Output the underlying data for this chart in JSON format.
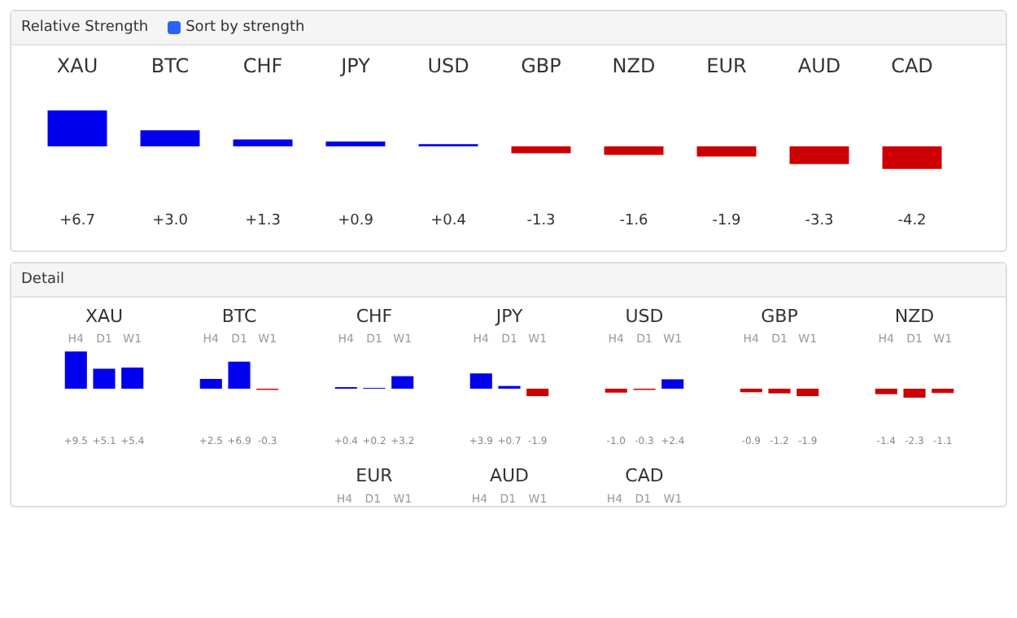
{
  "chart_data": [
    {
      "type": "bar",
      "title": "Relative Strength",
      "annotations": [
        "Sort by strength"
      ],
      "categories": [
        "XAU",
        "BTC",
        "CHF",
        "JPY",
        "USD",
        "GBP",
        "NZD",
        "EUR",
        "AUD",
        "CAD"
      ],
      "values": [
        6.7,
        3.0,
        1.3,
        0.9,
        0.4,
        -1.3,
        -1.6,
        -1.9,
        -3.3,
        -4.2
      ],
      "value_labels": [
        "+6.7",
        "+3.0",
        "+1.3",
        "+0.9",
        "+0.4",
        "-1.3",
        "-1.6",
        "-1.9",
        "-3.3",
        "-4.2"
      ],
      "colors": [
        "#0000ee",
        "#0000ee",
        "#0000ee",
        "#0000ee",
        "#0000ee",
        "#cc0000",
        "#cc0000",
        "#cc0000",
        "#cc0000",
        "#cc0000"
      ]
    },
    {
      "type": "other",
      "title": "Detail"
    },
    {
      "type": "bar",
      "title": "XAU",
      "categories": [
        "H4",
        "D1",
        "W1"
      ],
      "values": [
        9.5,
        5.1,
        5.4
      ],
      "value_labels": [
        "+9.5",
        "+5.1",
        "+5.4"
      ],
      "colors": [
        "#0000ee",
        "#0000ee",
        "#0000ee"
      ]
    },
    {
      "type": "bar",
      "title": "BTC",
      "categories": [
        "H4",
        "D1",
        "W1"
      ],
      "values": [
        2.5,
        6.9,
        -0.3
      ],
      "value_labels": [
        "+2.5",
        "+6.9",
        "-0.3"
      ],
      "colors": [
        "#0000ee",
        "#0000ee",
        "#cc0000"
      ]
    },
    {
      "type": "bar",
      "title": "CHF",
      "categories": [
        "H4",
        "D1",
        "W1"
      ],
      "values": [
        0.4,
        0.2,
        3.2
      ],
      "value_labels": [
        "+0.4",
        "+0.2",
        "+3.2"
      ],
      "colors": [
        "#0000ee",
        "#0000ee",
        "#0000ee"
      ]
    },
    {
      "type": "bar",
      "title": "JPY",
      "categories": [
        "H4",
        "D1",
        "W1"
      ],
      "values": [
        3.9,
        0.7,
        -1.9
      ],
      "value_labels": [
        "+3.9",
        "+0.7",
        "-1.9"
      ],
      "colors": [
        "#0000ee",
        "#0000ee",
        "#cc0000"
      ]
    },
    {
      "type": "bar",
      "title": "USD",
      "categories": [
        "H4",
        "D1",
        "W1"
      ],
      "values": [
        -1.0,
        -0.3,
        2.4
      ],
      "value_labels": [
        "-1.0",
        "-0.3",
        "+2.4"
      ],
      "colors": [
        "#cc0000",
        "#cc0000",
        "#0000ee"
      ]
    },
    {
      "type": "bar",
      "title": "GBP",
      "categories": [
        "H4",
        "D1",
        "W1"
      ],
      "values": [
        -0.9,
        -1.2,
        -1.9
      ],
      "value_labels": [
        "-0.9",
        "-1.2",
        "-1.9"
      ],
      "colors": [
        "#cc0000",
        "#cc0000",
        "#cc0000"
      ]
    },
    {
      "type": "bar",
      "title": "NZD",
      "categories": [
        "H4",
        "D1",
        "W1"
      ],
      "values": [
        -1.4,
        -2.3,
        -1.1
      ],
      "value_labels": [
        "-1.4",
        "-2.3",
        "-1.1"
      ],
      "colors": [
        "#cc0000",
        "#cc0000",
        "#cc0000"
      ]
    },
    {
      "type": "other",
      "title": "EUR",
      "annotations": [
        "H4",
        "D1",
        "W1"
      ]
    },
    {
      "type": "other",
      "title": "AUD",
      "annotations": [
        "H4",
        "D1",
        "W1"
      ]
    },
    {
      "type": "other",
      "title": "CAD",
      "annotations": [
        "H4",
        "D1",
        "W1"
      ]
    }
  ]
}
